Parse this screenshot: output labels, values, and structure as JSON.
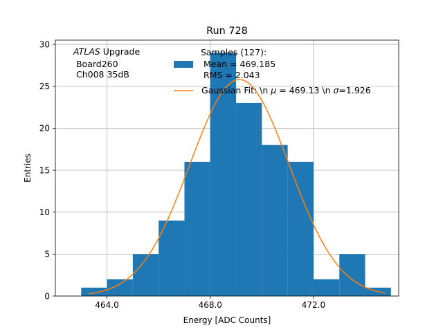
{
  "chart_data": {
    "type": "bar",
    "title": "Run 728",
    "xlabel": "Energy [ADC Counts]",
    "ylabel": "Entries",
    "xlim": [
      462.0,
      475.3
    ],
    "ylim": [
      0,
      30.5
    ],
    "xticks": [
      464.0,
      468.0,
      472.0
    ],
    "xtick_labels": [
      "464.0",
      "468.0",
      "472.0"
    ],
    "yticks": [
      0,
      5,
      10,
      15,
      20,
      25,
      30
    ],
    "ytick_labels": [
      "0",
      "5",
      "10",
      "15",
      "20",
      "25",
      "30"
    ],
    "grid": true,
    "bin_edges": [
      463.0,
      464.0,
      465.0,
      466.0,
      467.0,
      468.0,
      469.0,
      470.0,
      471.0,
      472.0,
      473.0,
      474.0,
      475.0
    ],
    "counts": [
      1,
      2,
      5,
      9,
      16,
      29,
      23,
      18,
      16,
      2,
      5,
      1
    ],
    "bar_color": "#1f77b4",
    "fit": {
      "name": "Gaussian Fit",
      "mu": 469.13,
      "sigma": 1.926,
      "amplitude": 25.8,
      "x_range": [
        463.3,
        474.8
      ],
      "color": "#ff7f0e"
    },
    "annotation": {
      "atlas": "ATLAS",
      "upgrade": " Upgrade",
      "line2": " Board260",
      "line3": " Ch008 35dB"
    },
    "legend": {
      "position": "top-center",
      "hist_line1": "Samples (127):",
      "hist_line2": " Mean = 469.185",
      "hist_line3": " RMS = 2.043",
      "fit_prefix": "Gaussian Fit: \\n ",
      "fit_mu_symbol": "μ",
      "fit_mid": " = 469.13 \\n ",
      "fit_sigma_symbol": "σ",
      "fit_suffix": "=1.926"
    }
  }
}
